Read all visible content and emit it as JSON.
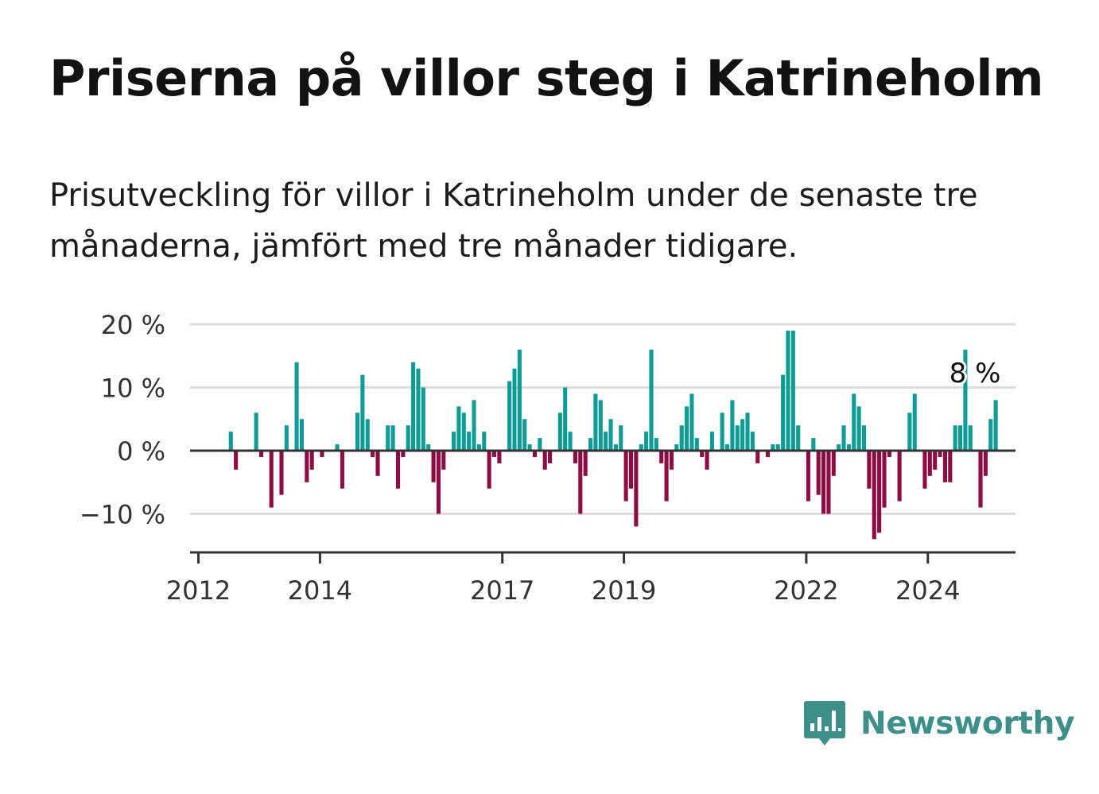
{
  "header": {
    "title": "Priserna på villor steg i Katrineholm",
    "subtitle": "Prisutveckling för villor i Katrineholm under de senaste tre månaderna, jämfört med tre månader tidigare."
  },
  "brand": {
    "name": "Newsworthy",
    "icon": "bar-chart-speech-bubble-icon",
    "color": "#3d8f8a"
  },
  "colors": {
    "positive": "#0f9c98",
    "negative": "#8e0b43",
    "grid": "#dddddd",
    "axis": "#333333"
  },
  "chart_data": {
    "type": "bar",
    "title": "",
    "xlabel": "",
    "ylabel": "",
    "ylim": [
      -16,
      20
    ],
    "y_ticks": [
      20,
      10,
      0,
      -10
    ],
    "y_tick_labels": [
      "20 %",
      "10 %",
      "0 %",
      "−10 %"
    ],
    "x_ticks": [
      "2012",
      "2014",
      "2017",
      "2019",
      "2022",
      "2024"
    ],
    "grid": true,
    "annotation": "8 %",
    "series": [
      {
        "values": [
          0,
          0,
          0,
          0,
          0,
          0,
          3,
          -3,
          0,
          0,
          0,
          6,
          -1,
          0,
          -9,
          0,
          -7,
          4,
          0,
          14,
          5,
          -5,
          -3,
          0,
          -1,
          0,
          0,
          1,
          -6,
          0,
          0,
          6,
          12,
          5,
          -1,
          -4,
          0,
          4,
          4,
          -6,
          -1,
          4,
          14,
          13,
          10,
          1,
          -5,
          -10,
          -3,
          0,
          3,
          7,
          6,
          3,
          8,
          1,
          3,
          -6,
          -1,
          -2,
          0,
          11,
          13,
          16,
          5,
          1,
          -1,
          2,
          -3,
          -2,
          0,
          6,
          10,
          3,
          -2,
          -10,
          -4,
          2,
          9,
          8,
          3,
          5,
          1,
          4,
          -8,
          -6,
          -12,
          1,
          3,
          16,
          2,
          -2,
          -8,
          -3,
          1,
          4,
          7,
          9,
          2,
          -1,
          -3,
          3,
          0,
          6,
          1,
          8,
          4,
          5,
          6,
          3,
          -2,
          0,
          -1,
          1,
          1,
          12,
          19,
          19,
          4,
          0,
          -8,
          2,
          -7,
          -10,
          -10,
          -4,
          1,
          4,
          1,
          9,
          7,
          4,
          -6,
          -14,
          -13,
          -9,
          -1,
          0,
          -8,
          0,
          6,
          9,
          0,
          -6,
          -4,
          -3,
          -1,
          -5,
          -5,
          4,
          4,
          16,
          4,
          0,
          -9,
          -4,
          5,
          8
        ]
      }
    ]
  }
}
